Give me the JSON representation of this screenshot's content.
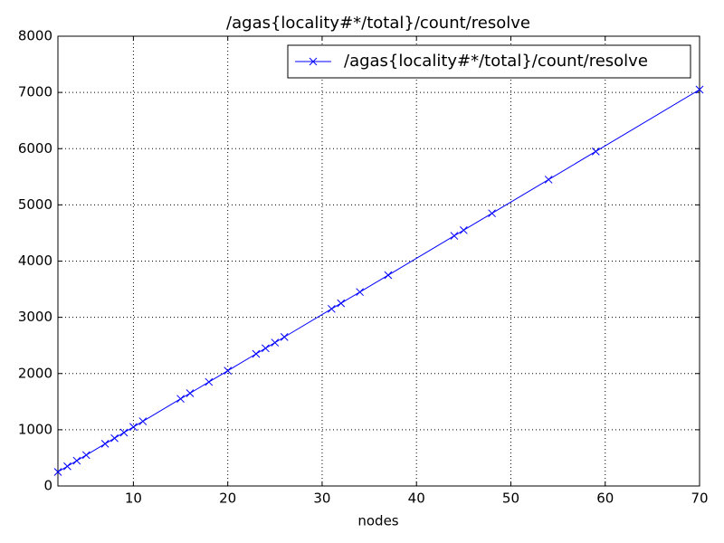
{
  "chart_data": {
    "type": "line",
    "title": "/agas{locality#*/total}/count/resolve",
    "x_label": "nodes",
    "x": [
      2,
      3,
      4,
      5,
      7,
      8,
      9,
      10,
      11,
      15,
      16,
      18,
      20,
      23,
      24,
      25,
      26,
      31,
      32,
      34,
      37,
      44,
      45,
      48,
      54,
      59,
      70
    ],
    "series": [
      {
        "name": "/agas{locality#*/total}/count/resolve",
        "color": "#0000ff",
        "values": [
          250,
          350,
          450,
          550,
          750,
          850,
          950,
          1050,
          1150,
          1550,
          1650,
          1850,
          2050,
          2350,
          2450,
          2550,
          2650,
          3150,
          3250,
          3450,
          3750,
          4450,
          4550,
          4850,
          5450,
          5950,
          7050
        ]
      }
    ],
    "xlim": [
      2,
      70
    ],
    "xticks": [
      10,
      20,
      30,
      40,
      50,
      60,
      70
    ],
    "ylim": [
      0,
      8000
    ],
    "yticks": [
      0,
      1000,
      2000,
      3000,
      4000,
      5000,
      6000,
      7000,
      8000
    ],
    "grid": true,
    "legend": "upper right"
  }
}
